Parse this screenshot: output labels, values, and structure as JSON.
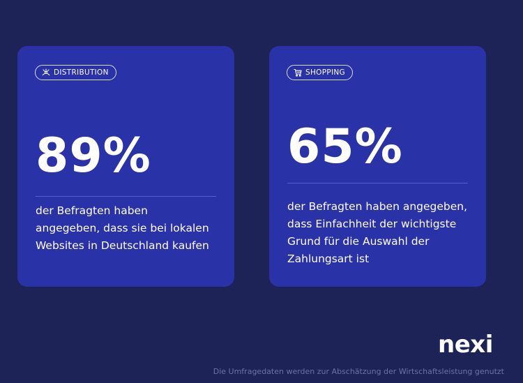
{
  "cards": [
    {
      "tag_label": "DISTRIBUTION",
      "tag_icon": "distribution-icon",
      "value": "89%",
      "description_lines": [
        "der Befragten haben",
        "angegeben, dass sie bei lokalen",
        "Websites in Deutschland kaufen"
      ]
    },
    {
      "tag_label": "SHOPPING",
      "tag_icon": "shopping-cart-icon",
      "value": "65%",
      "description_lines": [
        "der Befragten haben angegeben,",
        "dass Einfachheit der wichtigste",
        "Grund für die Auswahl der",
        "Zahlungsart ist"
      ]
    }
  ],
  "logo": "nexi",
  "footnote": "Die Umfragedaten werden zur Abschätzung der Wirtschaftsleistung genutzt",
  "colors": {
    "background": "#1e2357",
    "card": "#2a32a8",
    "text": "#ffffff",
    "footnote": "#6c72a8"
  }
}
